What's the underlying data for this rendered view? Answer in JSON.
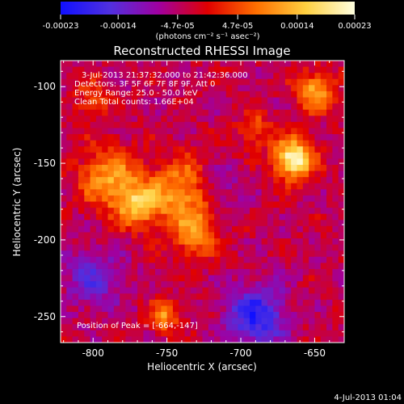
{
  "colorbar": {
    "tick_labels": [
      "-0.00023",
      "-0.00014",
      "-4.7e-05",
      "4.7e-05",
      "0.00014",
      "0.00023"
    ],
    "tick_values": [
      -0.00023,
      -0.00014,
      -4.7e-05,
      4.7e-05,
      0.00014,
      0.00023
    ],
    "range": [
      -0.00023,
      0.00023
    ],
    "units_label": "(photons cm⁻² s⁻¹ asec⁻²)",
    "stops": [
      "#1010ff",
      "#5030e0",
      "#a000a0",
      "#e00000",
      "#ff7000",
      "#ffd040",
      "#ffffe0"
    ]
  },
  "chart_data": {
    "type": "heatmap",
    "title": "Reconstructed RHESSI Image",
    "xlabel": "Heliocentric X (arcsec)",
    "ylabel": "Heliocentric Y (arcsec)",
    "xlim": [
      -822,
      -630
    ],
    "ylim": [
      -267,
      -83
    ],
    "xticks": [
      -800,
      -750,
      -700,
      -650
    ],
    "xtick_labels": [
      "-800",
      "-750",
      "-700",
      "-650"
    ],
    "yticks": [
      -250,
      -200,
      -150,
      -100
    ],
    "ytick_labels": [
      "-250",
      "-200",
      "-150",
      "-100"
    ],
    "annotations": [
      "3-Jul-2013 21:37:32.000 to 21:42:36.000",
      "Detectors: 3F 5F 6F 7F 8F 9F, Att 0",
      "Energy Range: 25.0 - 50.0 keV",
      "Clean     Total counts: 1.66E+04"
    ],
    "peak_label": "Position of Peak = [-664,-147]",
    "peak_position": [
      -664,
      -147
    ],
    "sources": [
      {
        "x": -664,
        "y": -147,
        "sigma": 9,
        "amp": 1.0
      },
      {
        "x": -790,
        "y": -160,
        "sigma": 14,
        "amp": 0.55
      },
      {
        "x": -740,
        "y": -170,
        "sigma": 16,
        "amp": 0.55
      },
      {
        "x": -770,
        "y": -177,
        "sigma": 10,
        "amp": 0.6
      },
      {
        "x": -730,
        "y": -198,
        "sigma": 10,
        "amp": 0.45
      },
      {
        "x": -650,
        "y": -103,
        "sigma": 9,
        "amp": 0.6
      },
      {
        "x": -690,
        "y": -128,
        "sigma": 8,
        "amp": 0.35
      },
      {
        "x": -752,
        "y": -250,
        "sigma": 7,
        "amp": 0.5
      },
      {
        "x": -800,
        "y": -108,
        "sigma": 9,
        "amp": 0.3
      }
    ],
    "negative_regions": [
      {
        "x": -690,
        "y": -250,
        "sigma": 14,
        "amp": -0.6
      },
      {
        "x": -800,
        "y": -225,
        "sigma": 14,
        "amp": -0.35
      },
      {
        "x": -715,
        "y": -165,
        "sigma": 10,
        "amp": -0.3
      }
    ]
  },
  "footer_timestamp": "4-Jul-2013 01:04"
}
